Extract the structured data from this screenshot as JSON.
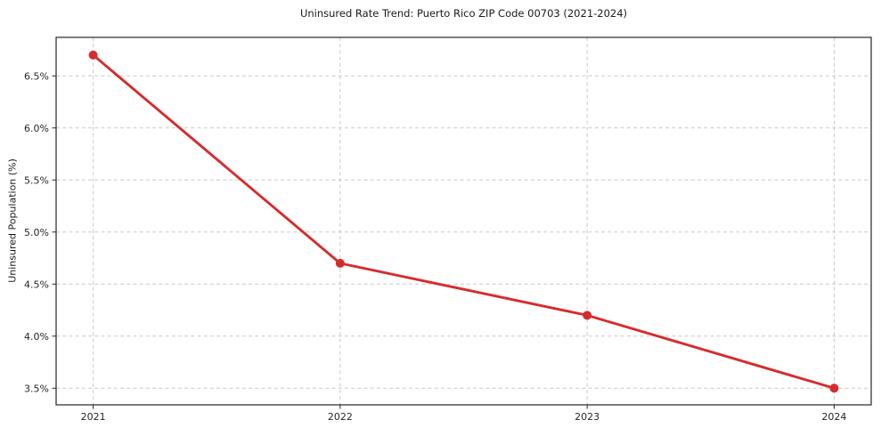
{
  "chart_data": {
    "type": "line",
    "title": "Uninsured Rate Trend: Puerto Rico ZIP Code 00703 (2021-2024)",
    "xlabel": "",
    "ylabel": "Uninsured Population (%)",
    "x": [
      2021,
      2022,
      2023,
      2024
    ],
    "values": [
      6.7,
      4.7,
      4.2,
      3.5
    ],
    "xtick_labels": [
      "2021",
      "2022",
      "2023",
      "2024"
    ],
    "ytick_values": [
      3.5,
      4.0,
      4.5,
      5.0,
      5.5,
      6.0,
      6.5
    ],
    "ytick_labels": [
      "3.5%",
      "4.0%",
      "4.5%",
      "5.0%",
      "5.5%",
      "6.0%",
      "6.5%"
    ],
    "xlim": [
      2020.85,
      2024.15
    ],
    "ylim": [
      3.34,
      6.87
    ],
    "grid": true,
    "grid_style": "dashed",
    "legend": "none",
    "colors": {
      "line": "#d62c2c",
      "marker": "#d62c2c",
      "grid": "#c9c9c9",
      "spine": "#262626",
      "text": "#1a1a1a",
      "background": "#ffffff"
    }
  }
}
